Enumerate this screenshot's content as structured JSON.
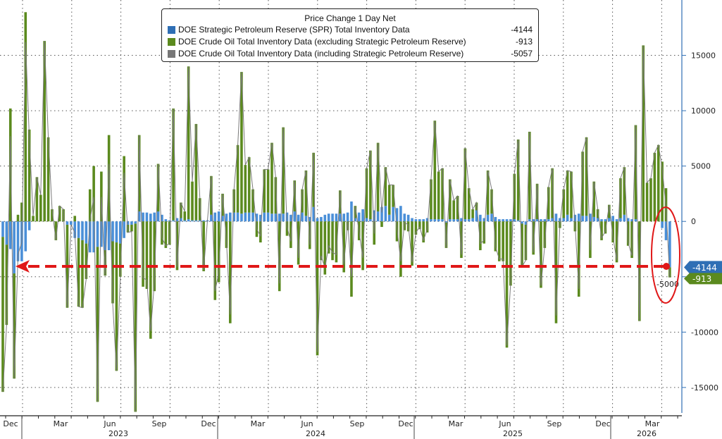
{
  "colors": {
    "spr": "#4a8fd8",
    "crude": "#5b8a1e",
    "total": "#7a7a7a",
    "annotation": "#e01818",
    "axis": "#2f6fb5"
  },
  "legend": {
    "title": "Price Change 1 Day Net",
    "items": [
      {
        "name": "DOE Strategic Petroleum Reserve (SPR) Total Inventory Data",
        "value": "-4144"
      },
      {
        "name": "DOE Crude Oil Total Inventory Data (excluding Strategic Petroleum Reserve)",
        "value": "-913"
      },
      {
        "name": "DOE Crude Oil Total Inventory Data (including Strategic Petroleum Reserve)",
        "value": "-5057"
      }
    ]
  },
  "chart_data": {
    "type": "bar",
    "stacked": true,
    "title": "Price Change 1 Day Net",
    "frequency": "weekly",
    "ylim": [
      -17300,
      20000
    ],
    "yticks": [
      -15000,
      -10000,
      -5000,
      0,
      5000,
      10000,
      15000
    ],
    "ytick_labels": [
      "-15000",
      "-10000",
      "-5000",
      "0",
      "5000",
      "10000",
      "15000"
    ],
    "x_month_labels": [
      "Dec",
      "Mar",
      "Jun",
      "Sep",
      "Dec",
      "Mar",
      "Jun",
      "Sep",
      "Dec",
      "Mar",
      "Jun",
      "Sep",
      "Dec",
      "Mar"
    ],
    "x_year_labels": [
      "2023",
      "2024",
      "2025",
      "2026"
    ],
    "grid": true,
    "legend_position": "top-center",
    "last_values": {
      "spr": "-4144",
      "crude": "-913"
    },
    "series": [
      {
        "name": "DOE Strategic Petroleum Reserve (SPR) Total Inventory Data",
        "key": "spr",
        "values": [
          -1400,
          -2100,
          -2500,
          -4700,
          -3600,
          -3600,
          -2700,
          -800,
          0,
          0,
          0,
          0,
          0,
          0,
          0,
          0,
          0,
          -300,
          -300,
          -1500,
          -1500,
          -1700,
          -2000,
          -2800,
          -2800,
          -2300,
          -2300,
          -2600,
          -2600,
          -1800,
          -1900,
          -2000,
          -1500,
          -300,
          -300,
          -200,
          900,
          800,
          800,
          700,
          800,
          900,
          600,
          200,
          100,
          100,
          300,
          300,
          100,
          200,
          100,
          100,
          100,
          100,
          100,
          600,
          800,
          900,
          500,
          700,
          800,
          800,
          800,
          700,
          800,
          800,
          800,
          700,
          600,
          800,
          800,
          700,
          700,
          700,
          700,
          800,
          600,
          900,
          600,
          800,
          500,
          400,
          1300,
          300,
          400,
          600,
          700,
          700,
          700,
          700,
          700,
          800,
          1800,
          300,
          800,
          1100,
          300,
          200,
          1000,
          900,
          1300,
          1400,
          600,
          1300,
          1200,
          1400,
          700,
          600,
          300,
          200,
          200,
          200,
          300,
          200,
          200,
          200,
          200,
          -100,
          200,
          200,
          200,
          300,
          200,
          200,
          300,
          1000,
          600,
          300,
          600,
          700,
          400,
          200,
          200,
          200,
          200,
          200,
          100,
          -200,
          -300,
          200,
          200,
          200,
          200,
          200,
          200,
          300,
          700,
          300,
          300,
          600,
          300,
          600,
          700,
          500,
          500,
          700,
          400,
          300,
          200,
          200,
          300,
          500,
          200,
          300,
          600,
          300,
          200,
          200,
          0,
          0,
          0,
          0,
          0,
          0,
          -600,
          -1700,
          -4144
        ]
      },
      {
        "name": "DOE Crude Oil Total Inventory Data (excluding Strategic Petroleum Reserve)",
        "key": "crude",
        "values": [
          -14000,
          -7250,
          10200,
          -9500,
          600,
          1700,
          18900,
          8300,
          500,
          4000,
          2400,
          16300,
          7600,
          1100,
          -1700,
          1400,
          1100,
          -7500,
          0,
          500,
          -6200,
          -6100,
          -3200,
          2900,
          5000,
          -14000,
          4500,
          -2300,
          7800,
          -5600,
          -11600,
          -3000,
          5900,
          -700,
          -600,
          -17000,
          6900,
          -5900,
          -6100,
          -10600,
          -6300,
          4300,
          -2100,
          -2400,
          -2100,
          10100,
          -4400,
          1400,
          800,
          13800,
          3500,
          8700,
          2000,
          -4500,
          0,
          3500,
          -7100,
          -5500,
          2000,
          -2400,
          -9200,
          2100,
          6100,
          12800,
          4300,
          5000,
          2100,
          -1400,
          -1900,
          3900,
          3900,
          6400,
          3300,
          -6300,
          7800,
          -1300,
          -2400,
          2800,
          -3900,
          2100,
          4100,
          -2500,
          4900,
          -12100,
          -3500,
          -4800,
          -2900,
          -3500,
          -3700,
          2100,
          -4600,
          -800,
          -6800,
          1100,
          -1700,
          -4400,
          4500,
          6200,
          -2100,
          6200,
          -500,
          3500,
          2700,
          2000,
          -1800,
          -5000,
          -800,
          -900,
          -4000,
          -1200,
          -700,
          -1900,
          -1000,
          3600,
          8900,
          4300,
          4600,
          -2300,
          3600,
          1700,
          2100,
          -3300,
          6400,
          2800,
          800,
          700,
          -2600,
          -2000,
          4000,
          2200,
          -2700,
          -3600,
          -3600,
          -11400,
          -5800,
          4100,
          7300,
          -3900,
          -3200,
          7900,
          -3000,
          3200,
          -6000,
          -2400,
          2900,
          4500,
          -9200,
          -600,
          2600,
          4000,
          4200,
          -900,
          -6800,
          5800,
          7100,
          -3300,
          3200,
          800,
          -1700,
          -1100,
          1200,
          -1900,
          -3700,
          3600,
          4300,
          -2200,
          -3300,
          8500,
          -9000,
          15900,
          3500,
          3900,
          6200,
          6900,
          5400,
          3000,
          -913
        ]
      },
      {
        "name": "DOE Crude Oil Total Inventory Data (including Strategic Petroleum Reserve)",
        "key": "total",
        "derived": "spr + crude",
        "last": -5057
      }
    ]
  }
}
